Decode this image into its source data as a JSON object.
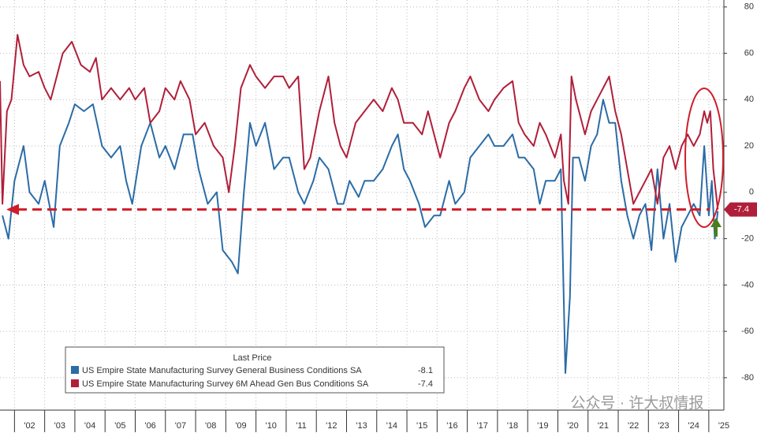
{
  "chart_data": {
    "type": "line",
    "xlim": [
      2001.52,
      2025.5
    ],
    "ylim": [
      -94,
      83
    ],
    "xticks": [
      {
        "value": 2002,
        "label": "'02"
      },
      {
        "value": 2003,
        "label": "'03"
      },
      {
        "value": 2004,
        "label": "'04"
      },
      {
        "value": 2005,
        "label": "'05"
      },
      {
        "value": 2006,
        "label": "'06"
      },
      {
        "value": 2007,
        "label": "'07"
      },
      {
        "value": 2008,
        "label": "'08"
      },
      {
        "value": 2009,
        "label": "'09"
      },
      {
        "value": 2010,
        "label": "'10"
      },
      {
        "value": 2011,
        "label": "'11"
      },
      {
        "value": 2012,
        "label": "'12"
      },
      {
        "value": 2013,
        "label": "'13"
      },
      {
        "value": 2014,
        "label": "'14"
      },
      {
        "value": 2015,
        "label": "'15"
      },
      {
        "value": 2016,
        "label": "'16"
      },
      {
        "value": 2017,
        "label": "'17"
      },
      {
        "value": 2018,
        "label": "'18"
      },
      {
        "value": 2019,
        "label": "'19"
      },
      {
        "value": 2020,
        "label": "'20"
      },
      {
        "value": 2021,
        "label": "'21"
      },
      {
        "value": 2022,
        "label": "'22"
      },
      {
        "value": 2023,
        "label": "'23"
      },
      {
        "value": 2024,
        "label": "'24"
      },
      {
        "value": 2025,
        "label": "'25"
      }
    ],
    "yticks": [
      80,
      60,
      40,
      20,
      0,
      -20,
      -40,
      -60,
      -80
    ],
    "grid": true,
    "legend_title": "Last Price",
    "watermark": "公众号 · 许大叔情报",
    "series": [
      {
        "name": "US Empire State Manufacturing Survey General Business Conditions SA",
        "color": "#2b6ca6",
        "x": [
          2001.6,
          2001.8,
          2002.0,
          2002.3,
          2002.5,
          2002.8,
          2003.0,
          2003.3,
          2003.5,
          2003.8,
          2004.0,
          2004.3,
          2004.6,
          2004.9,
          2005.2,
          2005.5,
          2005.7,
          2005.9,
          2006.2,
          2006.5,
          2006.8,
          2007.0,
          2007.3,
          2007.6,
          2007.9,
          2008.1,
          2008.4,
          2008.7,
          2008.9,
          2009.2,
          2009.4,
          2009.6,
          2009.8,
          2010.0,
          2010.3,
          2010.6,
          2010.9,
          2011.1,
          2011.4,
          2011.6,
          2011.9,
          2012.1,
          2012.4,
          2012.7,
          2012.9,
          2013.1,
          2013.4,
          2013.6,
          2013.9,
          2014.2,
          2014.5,
          2014.7,
          2014.9,
          2015.1,
          2015.4,
          2015.6,
          2015.9,
          2016.1,
          2016.4,
          2016.6,
          2016.9,
          2017.1,
          2017.4,
          2017.7,
          2017.9,
          2018.2,
          2018.5,
          2018.7,
          2018.9,
          2019.2,
          2019.4,
          2019.6,
          2019.9,
          2020.1,
          2020.25,
          2020.4,
          2020.5,
          2020.7,
          2020.9,
          2021.1,
          2021.3,
          2021.5,
          2021.7,
          2021.9,
          2022.1,
          2022.3,
          2022.5,
          2022.7,
          2022.9,
          2023.1,
          2023.3,
          2023.5,
          2023.7,
          2023.9,
          2024.1,
          2024.3,
          2024.5,
          2024.7,
          2024.85,
          2025.0,
          2025.1,
          2025.2,
          2025.3
        ],
        "values": [
          -10,
          -20,
          5,
          20,
          0,
          -5,
          5,
          -15,
          20,
          30,
          38,
          35,
          38,
          20,
          15,
          20,
          5,
          -5,
          20,
          30,
          15,
          20,
          10,
          25,
          25,
          10,
          -5,
          0,
          -25,
          -30,
          -35,
          0,
          30,
          20,
          30,
          10,
          15,
          15,
          0,
          -5,
          5,
          15,
          10,
          -5,
          -5,
          5,
          -2,
          5,
          5,
          10,
          20,
          25,
          10,
          5,
          -5,
          -15,
          -10,
          -10,
          5,
          -5,
          0,
          15,
          20,
          25,
          20,
          20,
          25,
          15,
          15,
          10,
          -5,
          5,
          5,
          10,
          -78,
          -45,
          15,
          15,
          5,
          20,
          25,
          40,
          30,
          30,
          5,
          -10,
          -20,
          -10,
          -5,
          -25,
          10,
          -20,
          -5,
          -30,
          -15,
          -10,
          -5,
          -10,
          20,
          -10,
          5,
          -20,
          -8.1
        ]
      },
      {
        "name": "US Empire State Manufacturing Survey 6M Ahead Gen Bus Conditions SA",
        "color": "#b01f3a",
        "x": [
          2001.52,
          2001.6,
          2001.75,
          2001.9,
          2002.1,
          2002.3,
          2002.5,
          2002.8,
          2003.0,
          2003.2,
          2003.4,
          2003.6,
          2003.9,
          2004.2,
          2004.5,
          2004.7,
          2004.9,
          2005.2,
          2005.5,
          2005.8,
          2006.0,
          2006.3,
          2006.5,
          2006.8,
          2007.0,
          2007.3,
          2007.5,
          2007.8,
          2008.0,
          2008.3,
          2008.6,
          2008.9,
          2009.1,
          2009.3,
          2009.5,
          2009.8,
          2010.0,
          2010.3,
          2010.6,
          2010.9,
          2011.1,
          2011.4,
          2011.6,
          2011.8,
          2012.1,
          2012.4,
          2012.6,
          2012.8,
          2013.0,
          2013.3,
          2013.6,
          2013.9,
          2014.2,
          2014.5,
          2014.7,
          2014.9,
          2015.2,
          2015.5,
          2015.7,
          2015.9,
          2016.1,
          2016.4,
          2016.6,
          2016.9,
          2017.1,
          2017.4,
          2017.7,
          2017.9,
          2018.2,
          2018.5,
          2018.7,
          2018.9,
          2019.2,
          2019.4,
          2019.6,
          2019.9,
          2020.1,
          2020.2,
          2020.35,
          2020.45,
          2020.6,
          2020.9,
          2021.1,
          2021.3,
          2021.5,
          2021.7,
          2021.9,
          2022.1,
          2022.3,
          2022.5,
          2022.7,
          2022.9,
          2023.1,
          2023.3,
          2023.5,
          2023.7,
          2023.9,
          2024.1,
          2024.3,
          2024.5,
          2024.7,
          2024.85,
          2024.95,
          2025.05,
          2025.15,
          2025.3
        ],
        "values": [
          48,
          -5,
          35,
          40,
          68,
          55,
          50,
          52,
          45,
          40,
          50,
          60,
          65,
          55,
          52,
          58,
          40,
          45,
          40,
          45,
          40,
          45,
          30,
          35,
          45,
          40,
          48,
          40,
          25,
          30,
          20,
          15,
          0,
          20,
          45,
          55,
          50,
          45,
          50,
          50,
          45,
          50,
          10,
          15,
          35,
          50,
          30,
          20,
          15,
          30,
          35,
          40,
          35,
          45,
          40,
          30,
          30,
          25,
          35,
          25,
          15,
          30,
          35,
          45,
          50,
          40,
          35,
          40,
          45,
          48,
          30,
          25,
          20,
          30,
          25,
          15,
          25,
          5,
          -5,
          50,
          40,
          25,
          35,
          40,
          45,
          50,
          35,
          25,
          10,
          -5,
          0,
          5,
          10,
          -5,
          15,
          20,
          10,
          20,
          25,
          20,
          25,
          35,
          30,
          35,
          10,
          -7.4
        ]
      }
    ]
  }
}
